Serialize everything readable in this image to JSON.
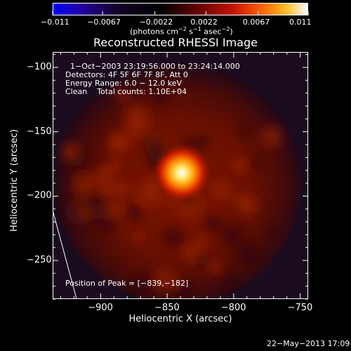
{
  "chart_data": {
    "type": "heatmap",
    "title": "Reconstructed RHESSI Image",
    "xlabel": "Heliocentric X (arcsec)",
    "ylabel": "Heliocentric Y (arcsec)",
    "xlim": [
      -936,
      -744
    ],
    "ylim": [
      -280,
      -88
    ],
    "x_ticks": [
      -900,
      -850,
      -800,
      -750
    ],
    "x_tick_labels": [
      "−900",
      "−850",
      "−800",
      "−750"
    ],
    "y_ticks": [
      -100,
      -150,
      -200,
      -250
    ],
    "y_tick_labels": [
      "−100",
      "−150",
      "−200",
      "−250"
    ],
    "colorbar": {
      "range": [
        -0.011,
        0.011
      ],
      "ticks": [
        -0.011,
        -0.0067,
        -0.0022,
        0.0022,
        0.0067,
        0.011
      ],
      "tick_labels": [
        "−0.011",
        "−0.0067",
        "−0.0022",
        "0.0022",
        "0.0067",
        "0.011"
      ],
      "units_main": "(photons cm",
      "units_exp1": "−2",
      "units_mid1": " s",
      "units_exp2": "−1",
      "units_mid2": " asec",
      "units_exp3": "−2",
      "units_end": ")",
      "colors": [
        "#0000ff",
        "#1a0050",
        "#000000",
        "#7a0000",
        "#ff6a00",
        "#ffffff"
      ]
    },
    "peak": {
      "x": -839,
      "y": -182
    },
    "limb_line": [
      [
        -936,
        -211
      ],
      [
        -918,
        -280
      ]
    ],
    "grid": false
  },
  "annotations": {
    "time_range": "1−Oct−2003 23:19:56.000 to 23:24:14.000",
    "detectors": "Detectors: 4F 5F 6F 7F 8F, Att 0",
    "energy_range": "Energy Range: 6.0 − 12.0 keV",
    "clean_line": "Clean    Total counts: 1.10E+04",
    "peak_position": "Position of Peak = [−839,−182]"
  },
  "datestamp": "22−May−2013 17:09"
}
